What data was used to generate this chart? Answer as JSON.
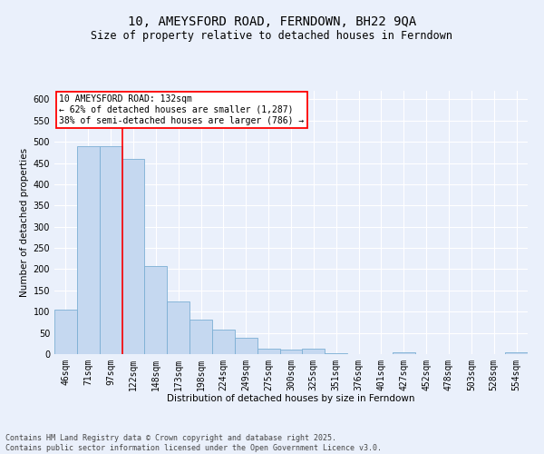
{
  "title": "10, AMEYSFORD ROAD, FERNDOWN, BH22 9QA",
  "subtitle": "Size of property relative to detached houses in Ferndown",
  "xlabel": "Distribution of detached houses by size in Ferndown",
  "ylabel": "Number of detached properties",
  "categories": [
    "46sqm",
    "71sqm",
    "97sqm",
    "122sqm",
    "148sqm",
    "173sqm",
    "198sqm",
    "224sqm",
    "249sqm",
    "275sqm",
    "300sqm",
    "325sqm",
    "351sqm",
    "376sqm",
    "401sqm",
    "427sqm",
    "452sqm",
    "478sqm",
    "503sqm",
    "528sqm",
    "554sqm"
  ],
  "values": [
    105,
    490,
    490,
    460,
    207,
    125,
    82,
    57,
    38,
    13,
    10,
    12,
    2,
    1,
    1,
    5,
    1,
    1,
    1,
    1,
    5
  ],
  "bar_color": "#c5d8f0",
  "bar_edge_color": "#7bafd4",
  "vline_position": 2.5,
  "vline_color": "red",
  "property_label": "10 AMEYSFORD ROAD: 132sqm",
  "annotation_line1": "← 62% of detached houses are smaller (1,287)",
  "annotation_line2": "38% of semi-detached houses are larger (786) →",
  "annotation_box_color": "white",
  "annotation_box_edge": "red",
  "ylim": [
    0,
    620
  ],
  "yticks": [
    0,
    50,
    100,
    150,
    200,
    250,
    300,
    350,
    400,
    450,
    500,
    550,
    600
  ],
  "bg_color": "#eaf0fb",
  "grid_color": "white",
  "footer": "Contains HM Land Registry data © Crown copyright and database right 2025.\nContains public sector information licensed under the Open Government Licence v3.0.",
  "title_fontsize": 10,
  "subtitle_fontsize": 8.5,
  "axis_fontsize": 7.5,
  "tick_fontsize": 7,
  "footer_fontsize": 6
}
